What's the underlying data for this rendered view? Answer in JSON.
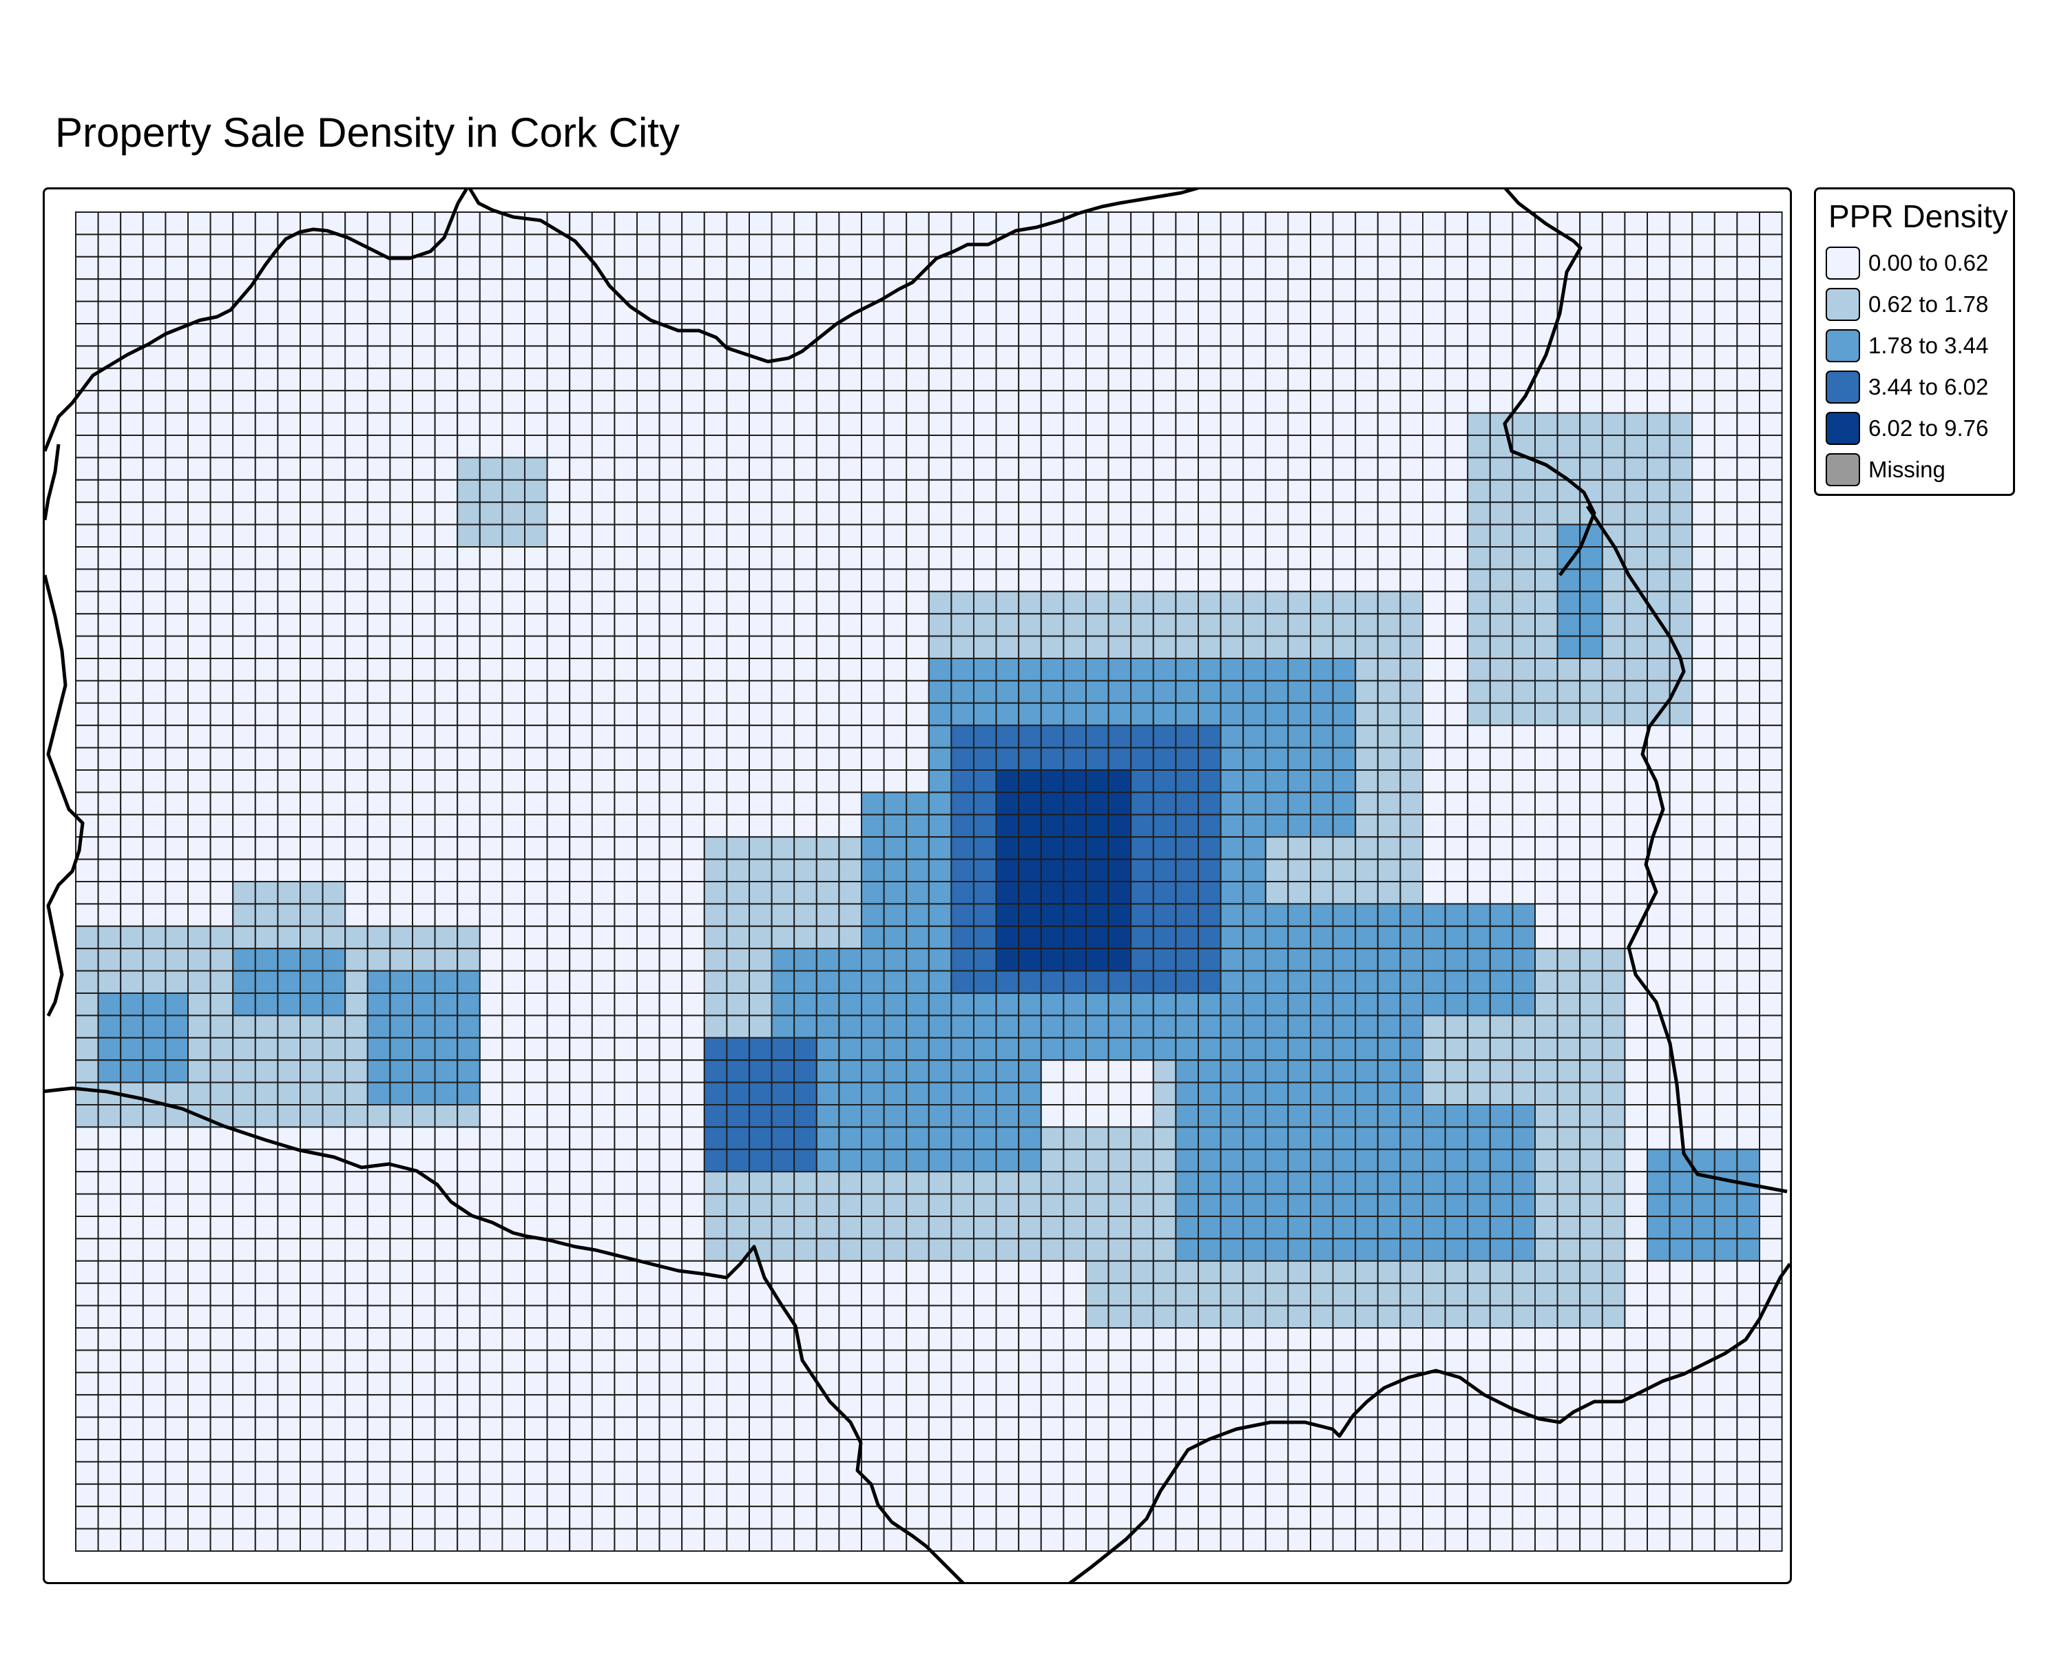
{
  "title": "Property Sale Density in Cork City",
  "legend": {
    "title": "PPR Density",
    "classes": [
      {
        "label": "0.00 to 0.62",
        "color": "#eff3ff"
      },
      {
        "label": "0.62 to 1.78",
        "color": "#b0cde2"
      },
      {
        "label": "1.78 to 3.44",
        "color": "#5da0d1"
      },
      {
        "label": "3.44 to 6.02",
        "color": "#2f6db4"
      },
      {
        "label": "6.02 to 9.76",
        "color": "#083d8d"
      },
      {
        "label": "Missing",
        "color": "#999999"
      }
    ]
  },
  "grid": {
    "columns": 76,
    "rows": 60,
    "line_color": "#1f1f1f"
  },
  "boundary_color": "#000000",
  "density_patches": [
    {
      "class": 1,
      "cols": [
        17,
        20
      ],
      "rows": [
        11,
        14
      ]
    },
    {
      "class": 1,
      "cols": [
        62,
        71
      ],
      "rows": [
        9,
        22
      ]
    },
    {
      "class": 2,
      "cols": [
        66,
        67
      ],
      "rows": [
        14,
        19
      ]
    },
    {
      "class": 1,
      "cols": [
        38,
        59
      ],
      "rows": [
        17,
        40
      ]
    },
    {
      "class": 1,
      "cols": [
        28,
        53
      ],
      "rows": [
        28,
        46
      ]
    },
    {
      "class": 1,
      "cols": [
        45,
        68
      ],
      "rows": [
        33,
        49
      ]
    },
    {
      "class": 1,
      "cols": [
        0,
        17
      ],
      "rows": [
        32,
        40
      ]
    },
    {
      "class": 1,
      "cols": [
        7,
        11
      ],
      "rows": [
        30,
        32
      ]
    },
    {
      "class": 2,
      "cols": [
        38,
        56
      ],
      "rows": [
        20,
        27
      ]
    },
    {
      "class": 2,
      "cols": [
        35,
        52
      ],
      "rows": [
        26,
        37
      ]
    },
    {
      "class": 2,
      "cols": [
        31,
        42
      ],
      "rows": [
        33,
        42
      ]
    },
    {
      "class": 2,
      "cols": [
        49,
        64
      ],
      "rows": [
        31,
        46
      ]
    },
    {
      "class": 2,
      "cols": [
        70,
        74
      ],
      "rows": [
        42,
        46
      ]
    },
    {
      "class": 2,
      "cols": [
        1,
        4
      ],
      "rows": [
        35,
        38
      ]
    },
    {
      "class": 2,
      "cols": [
        13,
        17
      ],
      "rows": [
        34,
        39
      ]
    },
    {
      "class": 2,
      "cols": [
        7,
        11
      ],
      "rows": [
        33,
        35
      ]
    },
    {
      "class": 3,
      "cols": [
        39,
        50
      ],
      "rows": [
        23,
        34
      ]
    },
    {
      "class": 3,
      "cols": [
        28,
        32
      ],
      "rows": [
        37,
        42
      ]
    },
    {
      "class": 4,
      "cols": [
        41,
        46
      ],
      "rows": [
        25,
        33
      ]
    },
    {
      "class": 1,
      "cols": [
        60,
        64
      ],
      "rows": [
        36,
        39
      ]
    },
    {
      "class": 0,
      "cols": [
        43,
        47
      ],
      "rows": [
        38,
        40
      ]
    }
  ]
}
